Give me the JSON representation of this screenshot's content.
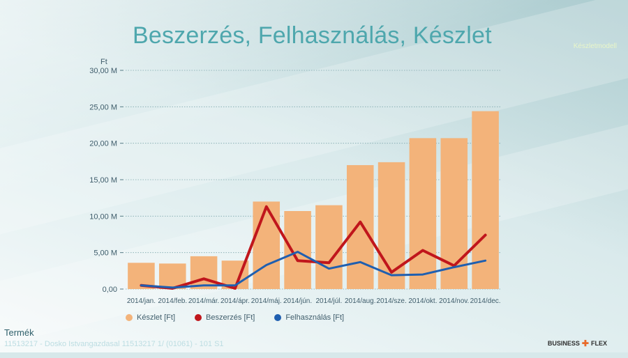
{
  "title": "Beszerzés, Felhasználás, Készlet",
  "corner_link": "Készletmodell",
  "footer": {
    "section_title": "Termék",
    "filter_text": "11513217 - Dosko Istvangazdasal 11513217 1/ (01061) - 101 S1"
  },
  "brand": {
    "left": "BUSINESS",
    "right": "FLEX"
  },
  "colors": {
    "bar": "#f3b37a",
    "red": "#c0161c",
    "blue": "#1f5fb0"
  },
  "chart_data": {
    "type": "bar",
    "ylabel": "Ft",
    "ylim": [
      0,
      30000000
    ],
    "yticks": [
      0,
      5000000,
      10000000,
      15000000,
      20000000,
      25000000,
      30000000
    ],
    "ytick_labels": [
      "0,00",
      "5,00 M",
      "10,00 M",
      "15,00 M",
      "20,00 M",
      "25,00 M",
      "30,00 M"
    ],
    "categories": [
      "2014/jan.",
      "2014/feb.",
      "2014/már.",
      "2014/ápr.",
      "2014/máj.",
      "2014/jún.",
      "2014/júl.",
      "2014/aug.",
      "2014/sze.",
      "2014/okt.",
      "2014/nov.",
      "2014/dec."
    ],
    "series": [
      {
        "name": "Készlet [Ft]",
        "type": "bar",
        "color": "#f3b37a",
        "values": [
          3600000,
          3500000,
          4500000,
          3900000,
          12000000,
          10700000,
          11500000,
          17000000,
          17400000,
          20700000,
          20700000,
          24400000
        ]
      },
      {
        "name": "Beszerzés [Ft]",
        "type": "line",
        "color": "#c0161c",
        "values": [
          500000,
          100000,
          1400000,
          100000,
          11300000,
          3900000,
          3600000,
          9200000,
          2300000,
          5300000,
          3200000,
          7400000
        ]
      },
      {
        "name": "Felhasználás [Ft]",
        "type": "line",
        "color": "#1f5fb0",
        "values": [
          500000,
          200000,
          500000,
          500000,
          3300000,
          5100000,
          2800000,
          3700000,
          1900000,
          2000000,
          3000000,
          3900000
        ]
      }
    ],
    "grid": true,
    "legend": "bottom"
  }
}
